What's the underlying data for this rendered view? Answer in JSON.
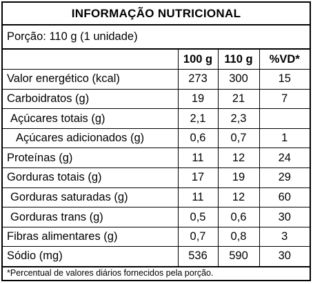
{
  "title": "INFORMAÇÃO NUTRICIONAL",
  "portion": "Porção: 110 g (1 unidade)",
  "columns": [
    "",
    "100 g",
    "110 g",
    "%VD*"
  ],
  "rows": [
    {
      "label": "Valor energético (kcal)",
      "indent": 0,
      "v100": "273",
      "v110": "300",
      "vd": "15"
    },
    {
      "label": "Carboidratos (g)",
      "indent": 0,
      "v100": "19",
      "v110": "21",
      "vd": "7"
    },
    {
      "label": "Açúcares totais (g)",
      "indent": 1,
      "v100": "2,1",
      "v110": "2,3",
      "vd": ""
    },
    {
      "label": "Açúcares adicionados (g)",
      "indent": 2,
      "v100": "0,6",
      "v110": "0,7",
      "vd": "1"
    },
    {
      "label": "Proteínas (g)",
      "indent": 0,
      "v100": "11",
      "v110": "12",
      "vd": "24"
    },
    {
      "label": "Gorduras totais (g)",
      "indent": 0,
      "v100": "17",
      "v110": "19",
      "vd": "29"
    },
    {
      "label": "Gorduras saturadas (g)",
      "indent": 1,
      "v100": "11",
      "v110": "12",
      "vd": "60"
    },
    {
      "label": "Gorduras trans (g)",
      "indent": 1,
      "v100": "0,5",
      "v110": "0,6",
      "vd": "30"
    },
    {
      "label": "Fibras alimentares (g)",
      "indent": 0,
      "v100": "0,7",
      "v110": "0,8",
      "vd": "3"
    },
    {
      "label": "Sódio (mg)",
      "indent": 0,
      "v100": "536",
      "v110": "590",
      "vd": "30"
    }
  ],
  "footnote": "*Percentual de valores diários fornecidos pela porção."
}
